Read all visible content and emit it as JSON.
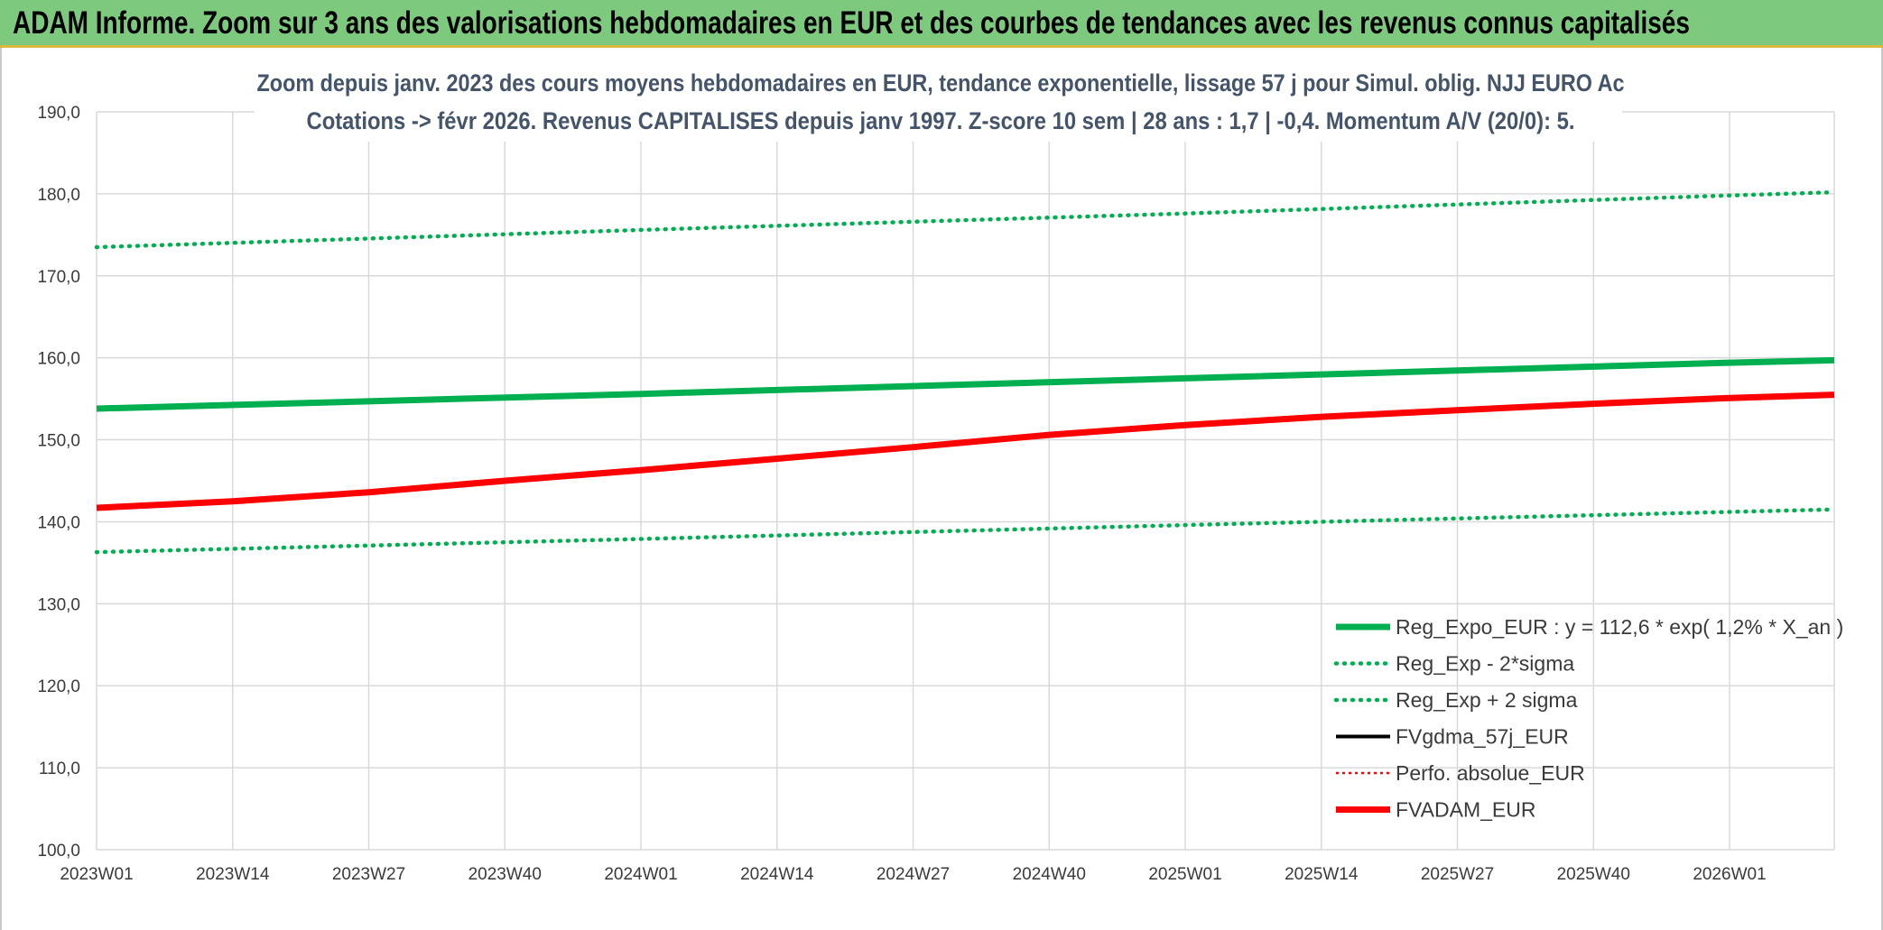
{
  "header": {
    "title": "ADAM Informe. Zoom sur 3 ans des valorisations hebdomadaires en EUR et des courbes de tendances avec les revenus connus capitalisés"
  },
  "colors": {
    "banner": "#7dc97d",
    "banner_border": "#d9b940",
    "green": "#00b050",
    "red": "#ff0000",
    "black": "#000000",
    "grid": "#d9d9d9",
    "title_text": "#44546a"
  },
  "chart_data": {
    "type": "line",
    "title": [
      "Zoom depuis janv. 2023 des cours moyens hebdomadaires en EUR, tendance exponentielle, lissage 57 j pour Simul. oblig. NJJ EURO Ac",
      "Cotations -> févr 2026. Revenus CAPITALISES depuis janv 1997. Z-score 10 sem | 28 ans : 1,7 | -0,4. Momentum A/V (20/0): 5."
    ],
    "xlabel": "",
    "ylabel": "",
    "x_ticks": [
      "2023W01",
      "2023W14",
      "2023W27",
      "2023W40",
      "2024W01",
      "2024W14",
      "2024W27",
      "2024W40",
      "2025W01",
      "2025W14",
      "2025W27",
      "2025W40",
      "2026W01"
    ],
    "x_range_weeks": [
      0,
      166
    ],
    "y_ticks": [
      "100,0",
      "110,0",
      "120,0",
      "130,0",
      "140,0",
      "150,0",
      "160,0",
      "170,0",
      "180,0",
      "190,0"
    ],
    "ylim": [
      100,
      190
    ],
    "grid": true,
    "legend_position": "bottom-right",
    "series": [
      {
        "name": "Reg_Expo_EUR : y = 112,6 * exp( 1,2% *  X_an )",
        "color": "#00b050",
        "style": "solid-thick",
        "points": [
          [
            0,
            153.8
          ],
          [
            52,
            155.6
          ],
          [
            104,
            157.5
          ],
          [
            156,
            159.4
          ],
          [
            166,
            159.7
          ]
        ]
      },
      {
        "name": "Reg_Exp - 2*sigma",
        "color": "#00b050",
        "style": "dotted",
        "points": [
          [
            0,
            136.3
          ],
          [
            52,
            137.9
          ],
          [
            104,
            139.6
          ],
          [
            156,
            141.2
          ],
          [
            166,
            141.5
          ]
        ]
      },
      {
        "name": "Reg_Exp + 2 sigma",
        "color": "#00b050",
        "style": "dotted",
        "points": [
          [
            0,
            173.5
          ],
          [
            52,
            175.6
          ],
          [
            104,
            177.6
          ],
          [
            156,
            179.8
          ],
          [
            166,
            180.2
          ]
        ]
      },
      {
        "name": "FVgdma_57j_EUR",
        "color": "#000000",
        "style": "solid",
        "points": []
      },
      {
        "name": "Perfo. absolue_EUR",
        "color": "#ff0000",
        "style": "dotted-thin",
        "points": []
      },
      {
        "name": "FVADAM_EUR",
        "color": "#ff0000",
        "style": "solid-thick",
        "points": [
          [
            0,
            141.7
          ],
          [
            13,
            142.5
          ],
          [
            26,
            143.6
          ],
          [
            39,
            145.0
          ],
          [
            52,
            146.3
          ],
          [
            65,
            147.7
          ],
          [
            78,
            149.1
          ],
          [
            91,
            150.6
          ],
          [
            104,
            151.8
          ],
          [
            117,
            152.8
          ],
          [
            130,
            153.6
          ],
          [
            143,
            154.4
          ],
          [
            156,
            155.1
          ],
          [
            166,
            155.5
          ]
        ]
      }
    ]
  }
}
